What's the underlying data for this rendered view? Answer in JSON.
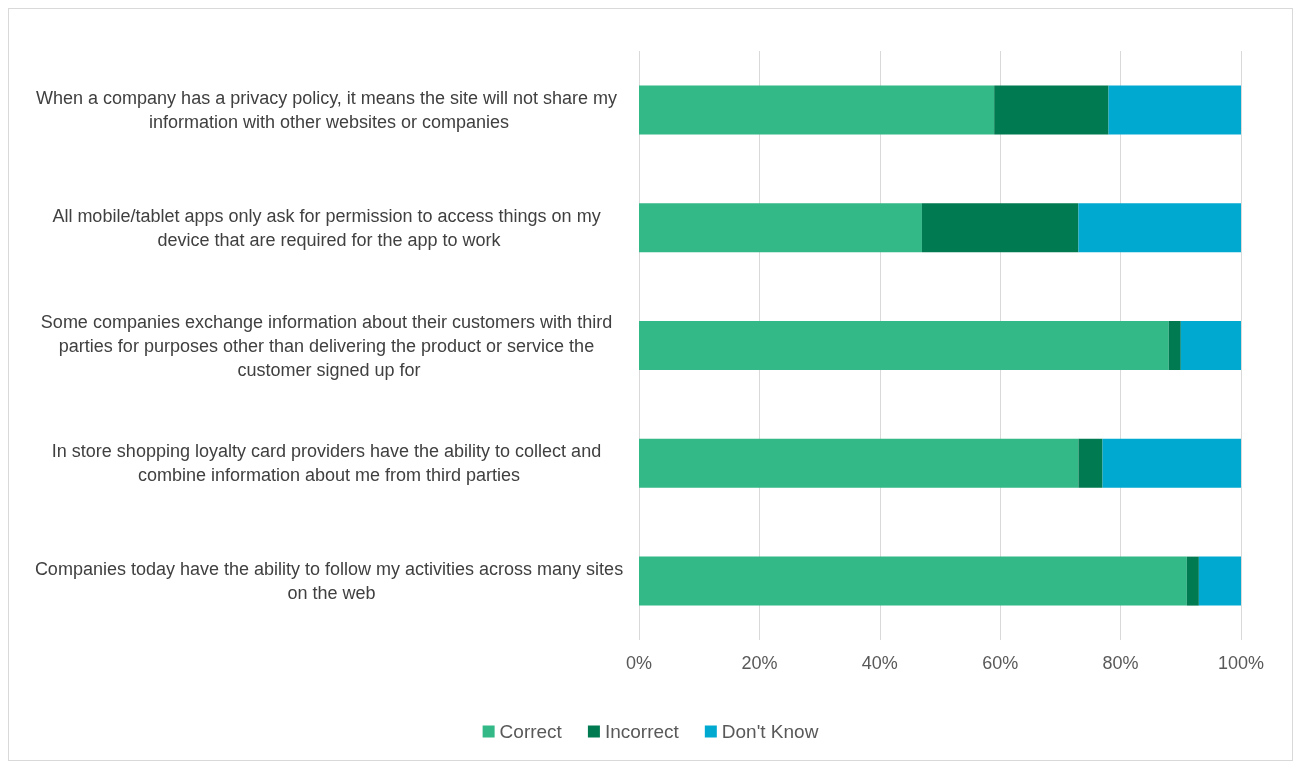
{
  "chart_data": {
    "type": "bar",
    "orientation": "horizontal",
    "stacked": true,
    "categories": [
      "When a company has a privacy policy, it means the site will not share my information with other websites or companies",
      "All mobile/tablet apps only ask for permission to access things on my device that are required for the app to work",
      "Some companies exchange information about their customers with third parties for purposes other than delivering the product or service the customer signed up for",
      "In store shopping loyalty card providers have the ability to collect and combine information about me from third parties",
      "Companies today have the ability to follow my activities across many sites on the web"
    ],
    "series": [
      {
        "name": "Correct",
        "color": "#33b888",
        "values": [
          59,
          47,
          88,
          73,
          91
        ]
      },
      {
        "name": "Incorrect",
        "color": "#007a50",
        "values": [
          19,
          26,
          2,
          4,
          2
        ]
      },
      {
        "name": "Don't Know",
        "color": "#00a9d0",
        "values": [
          22,
          27,
          10,
          23,
          7
        ]
      }
    ],
    "xlim": [
      0,
      100
    ],
    "xticks": [
      {
        "value": 0,
        "label": "0%"
      },
      {
        "value": 20,
        "label": "20%"
      },
      {
        "value": 40,
        "label": "40%"
      },
      {
        "value": 60,
        "label": "60%"
      },
      {
        "value": 80,
        "label": "80%"
      },
      {
        "value": 100,
        "label": "100%"
      }
    ],
    "grid": "x",
    "legend": "bottom"
  }
}
